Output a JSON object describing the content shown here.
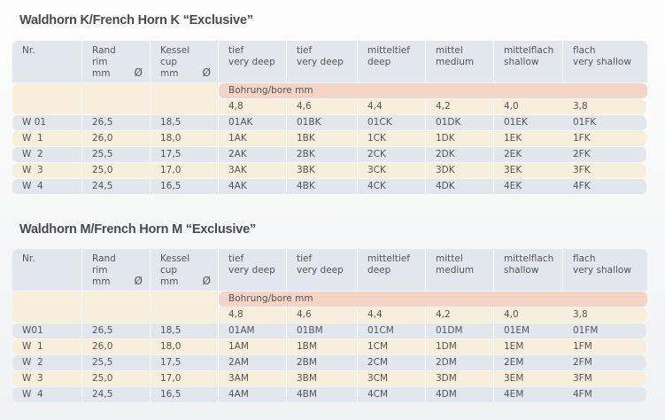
{
  "tables": [
    {
      "title": "Waldhorn K/French Horn K “Exclusive”",
      "headers": [
        "Nr.",
        "Rand\nrim\nmm",
        "Kessel\ncup\nmm",
        "tief\nvery deep",
        "tief\nvery deep",
        "mitteltief\ndeep",
        "mittel\nmedium",
        "mittelflach\nshallow",
        "flach\nvery shallow"
      ],
      "diameter_symbol": "Ø",
      "bore_label": "Bohrung/bore mm",
      "bores": [
        "4,8",
        "4,6",
        "4,4",
        "4,2",
        "4,0",
        "3,8"
      ],
      "rows": [
        [
          "W 01",
          "26,5",
          "18,5",
          "01AK",
          "01BK",
          "01CK",
          "01DK",
          "01EK",
          "01FK"
        ],
        [
          "W  1",
          "26,0",
          "18,0",
          "1AK",
          "1BK",
          "1CK",
          "1DK",
          "1EK",
          "1FK"
        ],
        [
          "W  2",
          "25,5",
          "17,5",
          "2AK",
          "2BK",
          "2CK",
          "2DK",
          "2EK",
          "2FK"
        ],
        [
          "W  3",
          "25,0",
          "17,0",
          "3AK",
          "3BK",
          "3CK",
          "3DK",
          "3EK",
          "3FK"
        ],
        [
          "W  4",
          "24,5",
          "16,5",
          "4AK",
          "4BK",
          "4CK",
          "4DK",
          "4EK",
          "4FK"
        ]
      ]
    },
    {
      "title": "Waldhorn M/French Horn M “Exclusive”",
      "headers": [
        "Nr.",
        "Rand\nrim\nmm",
        "Kessel\ncup\nmm",
        "tief\nvery deep",
        "tief\nvery deep",
        "mitteltief\ndeep",
        "mittel\nmedium",
        "mittelflach\nshallow",
        "flach\nvery shallow"
      ],
      "diameter_symbol": "Ø",
      "bore_label": "Bohrung/bore mm",
      "bores": [
        "4,8",
        "4,6",
        "4,4",
        "4,2",
        "4,0",
        "3,8"
      ],
      "rows": [
        [
          "W01",
          "26,5",
          "18,5",
          "01AM",
          "01BM",
          "01CM",
          "01DM",
          "01EM",
          "01FM"
        ],
        [
          "W  1",
          "26,0",
          "18,0",
          "1AM",
          "1BM",
          "1CM",
          "1DM",
          "1EM",
          "1FM"
        ],
        [
          "W  2",
          "25,5",
          "17,5",
          "2AM",
          "2BM",
          "2CM",
          "2DM",
          "2EM",
          "2FM"
        ],
        [
          "W  3",
          "25,0",
          "17,0",
          "3AM",
          "3BM",
          "3CM",
          "3DM",
          "3EM",
          "3FM"
        ],
        [
          "W  4",
          "24,5",
          "16,5",
          "4AM",
          "4BM",
          "4CM",
          "4DM",
          "4EM",
          "4FM"
        ]
      ]
    }
  ]
}
